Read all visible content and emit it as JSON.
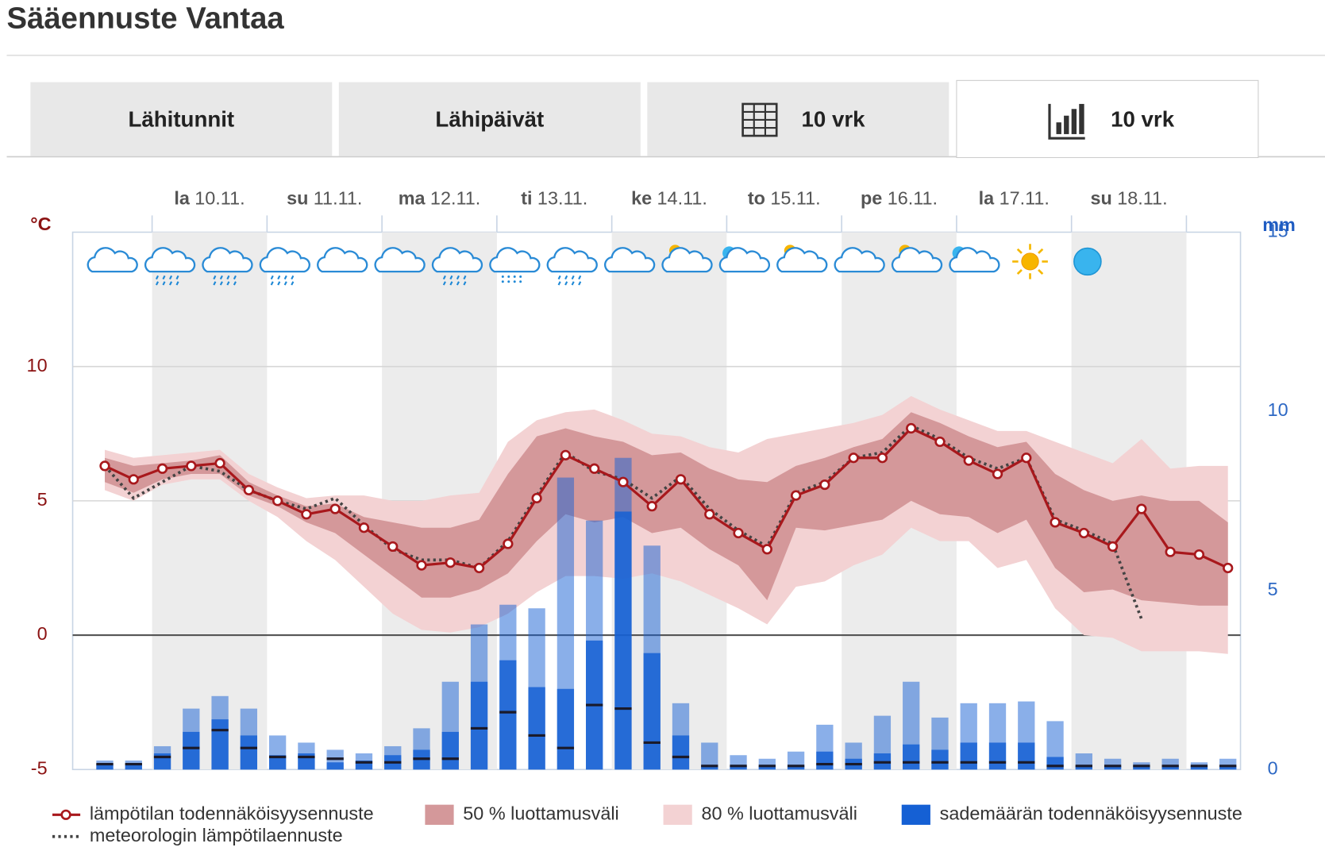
{
  "header": {
    "title": "Sääennuste Vantaa"
  },
  "tabs": [
    {
      "label": "Lähitunnit"
    },
    {
      "label": "Lähipäivät"
    },
    {
      "label": "10 vrk",
      "icon": "table"
    },
    {
      "label": "10 vrk",
      "icon": "bars",
      "active": true
    }
  ],
  "chart_data": {
    "type": "line",
    "ylabel": "°C",
    "y2label": "mm",
    "ylim": [
      -5,
      15
    ],
    "yticks": [
      -5,
      0,
      5,
      10
    ],
    "y2lim": [
      0,
      15
    ],
    "y2ticks": [
      0,
      5,
      10,
      15
    ],
    "days": [
      {
        "weekday": "la",
        "date": "10.11."
      },
      {
        "weekday": "su",
        "date": "11.11."
      },
      {
        "weekday": "ma",
        "date": "12.11."
      },
      {
        "weekday": "ti",
        "date": "13.11."
      },
      {
        "weekday": "ke",
        "date": "14.11."
      },
      {
        "weekday": "to",
        "date": "15.11."
      },
      {
        "weekday": "pe",
        "date": "16.11."
      },
      {
        "weekday": "la",
        "date": "17.11."
      },
      {
        "weekday": "su",
        "date": "18.11."
      }
    ],
    "symbols": [
      "cloud",
      "rain",
      "rain",
      "rain",
      "cloud",
      "cloud",
      "rain",
      "sleet",
      "rain",
      "cloud",
      "partly-sun",
      "partly-moon",
      "partly-sun",
      "cloud",
      "partly-sun",
      "partly-moon",
      "sun",
      "moon"
    ],
    "series": [
      {
        "name": "lämpötilan todennäköisyysennuste",
        "type": "line",
        "color": "#a8181c",
        "values": [
          6.3,
          5.8,
          6.2,
          6.3,
          6.4,
          5.4,
          5.0,
          4.5,
          4.7,
          4.0,
          3.3,
          2.6,
          2.7,
          2.5,
          3.4,
          5.1,
          6.7,
          6.2,
          5.7,
          4.8,
          5.8,
          4.5,
          3.8,
          3.2,
          5.2,
          5.6,
          6.6,
          6.6,
          7.7,
          7.2,
          6.5,
          6.0,
          6.6,
          4.2,
          3.8,
          3.3,
          4.7,
          3.1,
          3.0,
          2.5
        ]
      },
      {
        "name": "50 % luottamusväli",
        "type": "band",
        "color": "#d4989a",
        "high": [
          6.6,
          6.3,
          6.4,
          6.5,
          6.7,
          5.7,
          5.2,
          4.8,
          4.9,
          4.4,
          4.2,
          4.0,
          4.0,
          4.3,
          6.0,
          7.4,
          7.7,
          7.4,
          7.2,
          6.7,
          6.8,
          6.2,
          5.8,
          5.7,
          6.3,
          6.6,
          7.0,
          7.3,
          8.3,
          7.9,
          7.4,
          7.0,
          7.2,
          6.0,
          5.4,
          5.0,
          5.2,
          5.0,
          5.0,
          4.2
        ],
        "low": [
          5.7,
          5.3,
          5.8,
          6.0,
          6.0,
          5.2,
          4.8,
          4.2,
          3.8,
          3.0,
          2.2,
          1.4,
          1.4,
          1.7,
          2.3,
          3.5,
          4.5,
          4.2,
          4.4,
          3.8,
          4.0,
          3.2,
          2.6,
          1.3,
          4.0,
          3.9,
          4.1,
          4.3,
          5.0,
          4.5,
          4.4,
          3.8,
          4.3,
          2.5,
          1.6,
          1.7,
          1.3,
          1.2,
          1.1,
          1.1
        ]
      },
      {
        "name": "80 % luottamusväli",
        "type": "band",
        "color": "#f3d2d3",
        "high": [
          6.9,
          6.6,
          6.7,
          6.8,
          6.9,
          6.0,
          5.5,
          5.1,
          5.2,
          5.2,
          5.0,
          5.0,
          5.2,
          5.3,
          7.2,
          8.0,
          8.3,
          8.4,
          8.0,
          7.5,
          7.4,
          7.0,
          6.8,
          7.3,
          7.5,
          7.7,
          7.9,
          8.2,
          8.9,
          8.4,
          8.0,
          7.6,
          7.6,
          7.2,
          6.8,
          6.4,
          7.3,
          6.2,
          6.3,
          6.3
        ],
        "low": [
          5.4,
          5.0,
          5.6,
          5.8,
          5.8,
          5.0,
          4.4,
          3.5,
          2.8,
          1.8,
          0.8,
          0.2,
          0.1,
          0.3,
          0.8,
          1.6,
          2.2,
          2.2,
          2.1,
          2.3,
          2.0,
          1.5,
          1.0,
          0.4,
          1.8,
          2.0,
          2.6,
          3.0,
          4.0,
          3.5,
          3.5,
          2.5,
          2.8,
          1.0,
          0.0,
          -0.1,
          -0.6,
          -0.6,
          -0.6,
          -0.7
        ]
      },
      {
        "name": "sademäärän todennäköisyysennuste",
        "type": "bar",
        "axis": "y2",
        "color": "#1560d4",
        "high80": [
          0.25,
          0.25,
          0.65,
          1.7,
          2.05,
          1.7,
          0.95,
          0.75,
          0.55,
          0.45,
          0.65,
          1.15,
          2.45,
          4.05,
          4.6,
          4.5,
          8.15,
          6.95,
          8.7,
          6.25,
          1.85,
          0.75,
          0.4,
          0.3,
          0.5,
          1.25,
          0.75,
          1.5,
          2.45,
          1.45,
          1.85,
          1.85,
          1.9,
          1.35,
          0.45,
          0.3,
          0.2,
          0.3,
          0.2,
          0.3
        ],
        "high50": [
          0.15,
          0.15,
          0.45,
          1.05,
          1.4,
          0.95,
          0.4,
          0.45,
          0.2,
          0.25,
          0.4,
          0.55,
          1.05,
          2.45,
          3.05,
          2.3,
          2.25,
          3.6,
          7.2,
          3.25,
          0.95,
          0.1,
          0.1,
          0.1,
          0.1,
          0.5,
          0.3,
          0.45,
          0.7,
          0.55,
          0.75,
          0.75,
          0.75,
          0.35,
          0.1,
          0.1,
          0.1,
          0.1,
          0.1,
          0.1
        ],
        "median": [
          0.15,
          0.15,
          0.35,
          0.6,
          1.1,
          0.6,
          0.35,
          0.35,
          0.3,
          0.2,
          0.2,
          0.3,
          0.3,
          1.15,
          1.6,
          0.95,
          0.6,
          1.8,
          1.7,
          0.75,
          0.35,
          0.1,
          0.1,
          0.1,
          0.1,
          0.15,
          0.15,
          0.2,
          0.2,
          0.2,
          0.2,
          0.2,
          0.2,
          0.1,
          0.1,
          0.1,
          0.1,
          0.1,
          0.1,
          0.1
        ]
      },
      {
        "name": "meteorologin lämpötilaennuste",
        "type": "line",
        "style": "dotted",
        "color": "#444444",
        "values": [
          6.3,
          5.1,
          5.7,
          6.3,
          6.1,
          5.4,
          5.0,
          4.7,
          5.1,
          4.1,
          3.2,
          2.8,
          2.8,
          2.5,
          3.5,
          5.2,
          6.8,
          6.1,
          5.8,
          5.1,
          5.9,
          4.7,
          3.9,
          3.3,
          5.3,
          5.7,
          6.6,
          6.8,
          7.8,
          7.3,
          6.6,
          6.2,
          6.6,
          4.3,
          3.9,
          3.4,
          0.6,
          null,
          null,
          null
        ]
      }
    ]
  }
}
